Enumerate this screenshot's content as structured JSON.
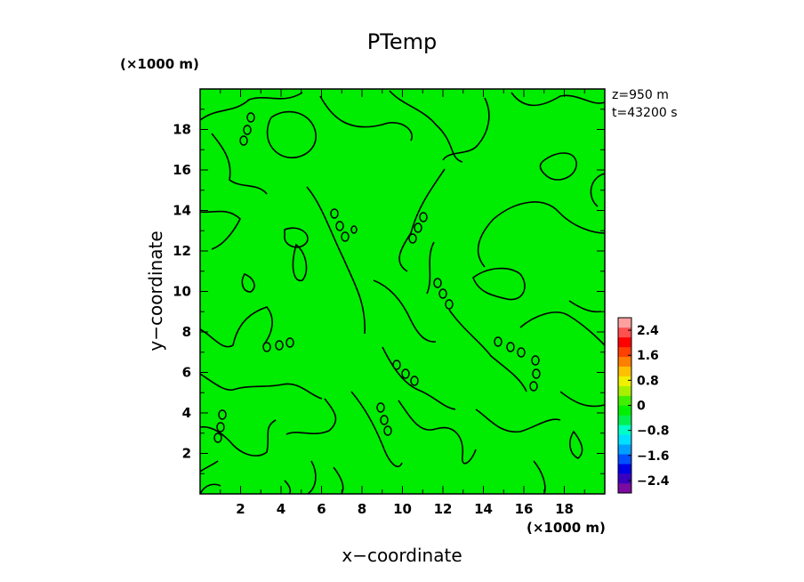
{
  "chart_data": {
    "type": "heatmap",
    "title": "PTemp",
    "xlabel": "x−coordinate",
    "ylabel": "y−coordinate",
    "x_unit": "(×1000 m)",
    "y_unit": "(×1000 m)",
    "xlim": [
      0,
      20
    ],
    "ylim": [
      0,
      20
    ],
    "x_ticks": [
      2,
      4,
      6,
      8,
      10,
      12,
      14,
      16,
      18
    ],
    "y_ticks": [
      2,
      4,
      6,
      8,
      10,
      12,
      14,
      16,
      18
    ],
    "annotations": [
      "z=950 m",
      "t=43200 s"
    ],
    "colorbar": {
      "ticks": [
        "2.4",
        "1.6",
        "0.8",
        "0",
        "−0.8",
        "−1.6",
        "−2.4"
      ],
      "tick_values": [
        2.4,
        1.6,
        0.8,
        0,
        -0.8,
        -1.6,
        -2.4
      ],
      "range": [
        -2.8,
        2.8
      ],
      "colors": [
        "#7a0aa0",
        "#3a00c0",
        "#0000e6",
        "#0050ff",
        "#00a0ff",
        "#00e0ff",
        "#00ffc8",
        "#00f050",
        "#00f000",
        "#40f000",
        "#a8f000",
        "#f0f000",
        "#ffc000",
        "#ff8000",
        "#ff4000",
        "#ff0000",
        "#ff5050",
        "#ffa0a0"
      ]
    },
    "field_color": "#00ec00",
    "contour_color": "#000000",
    "grid": false,
    "legend": "right"
  }
}
